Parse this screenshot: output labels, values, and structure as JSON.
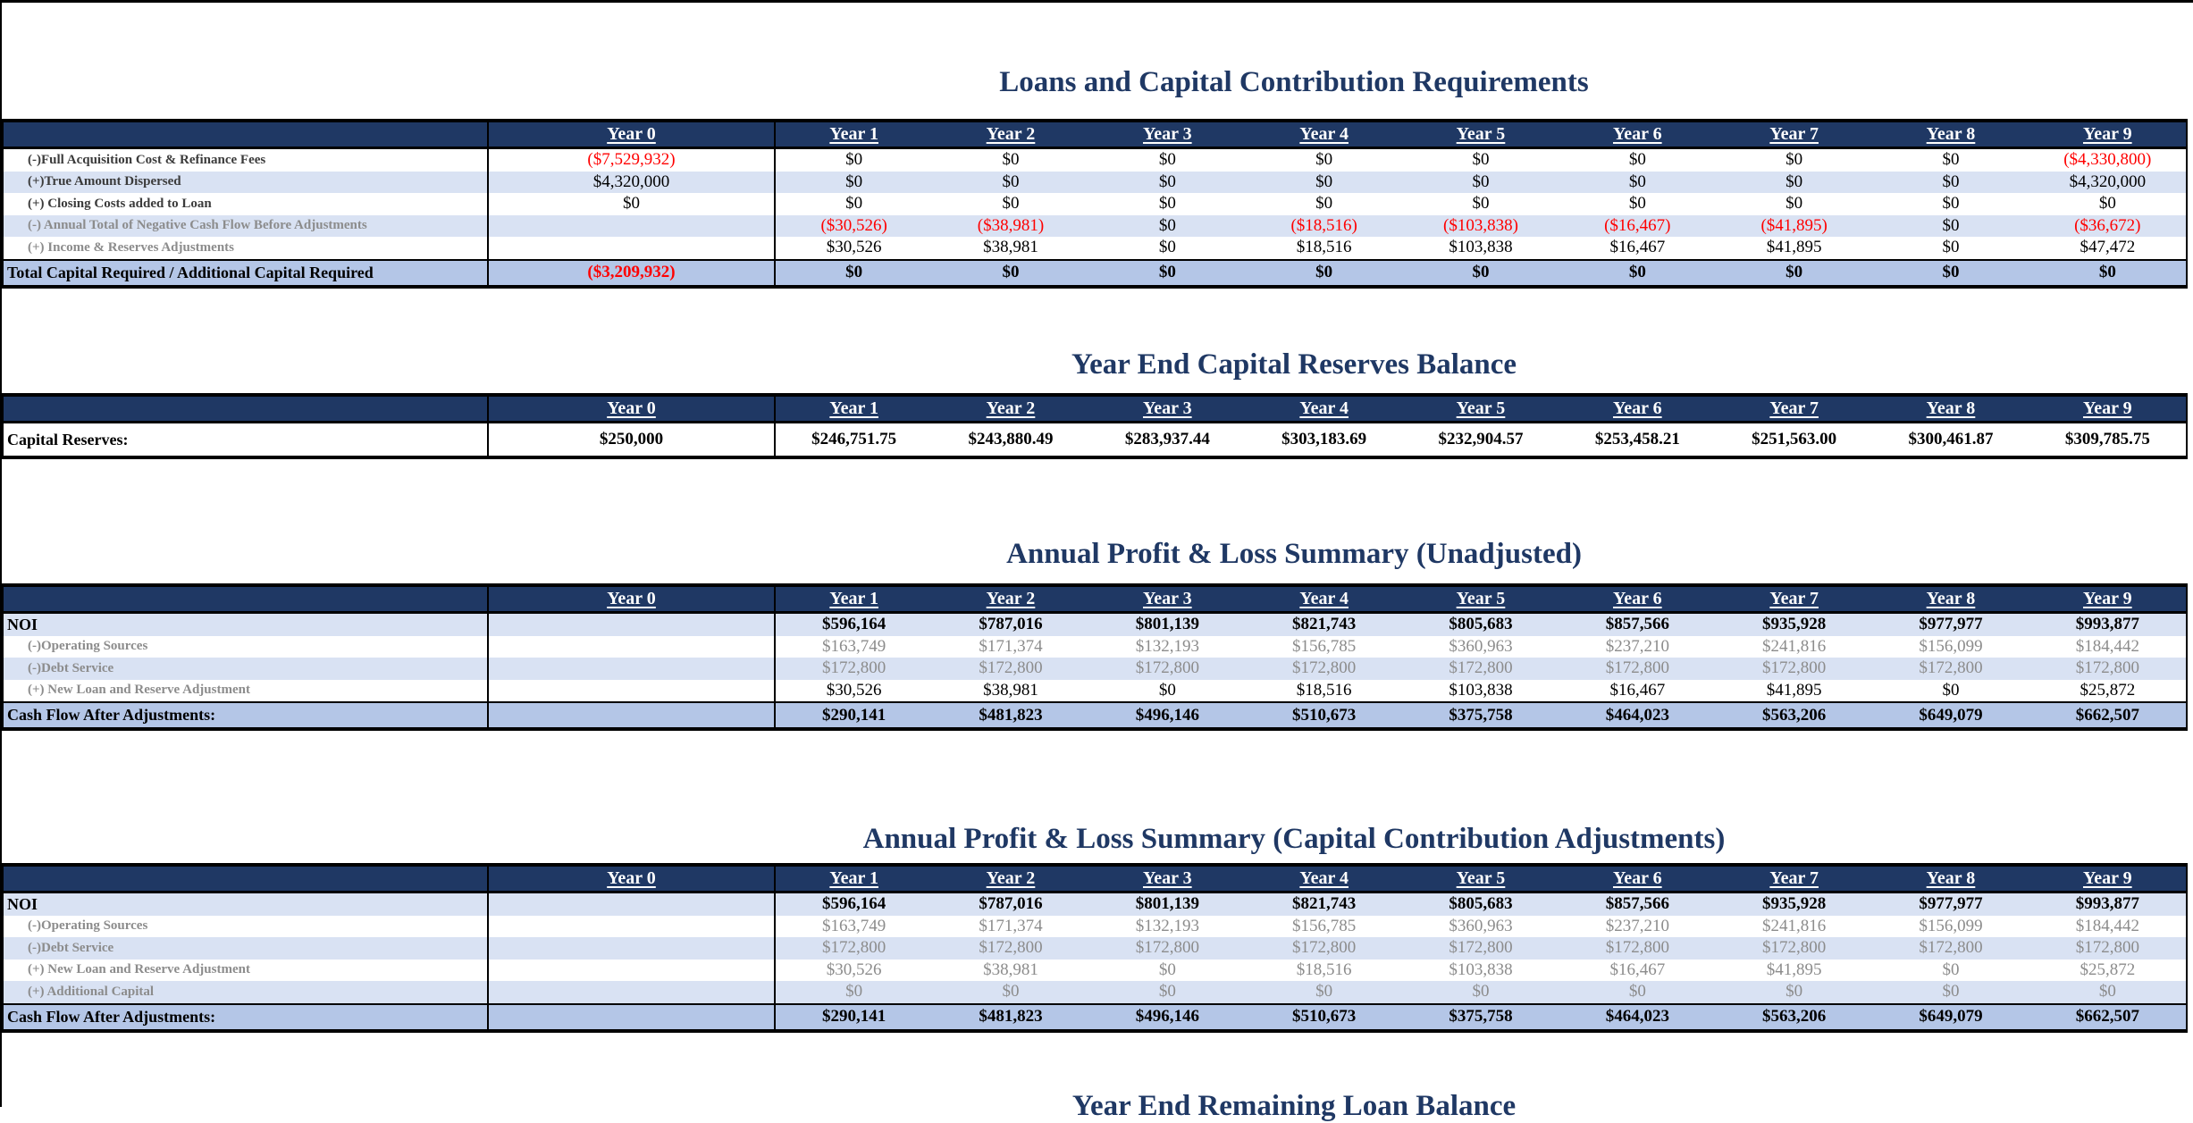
{
  "colors": {
    "header_bg": "#1F3864",
    "stripe": "#D9E2F3",
    "total_bg": "#B4C6E7",
    "negative": "#FF0000",
    "title_text": "#1F3864",
    "muted_text": "#8C8C8C"
  },
  "sections": [
    {
      "title": "Loans and Capital Contribution Requirements",
      "columns": [
        "Year 0",
        "Year 1",
        "Year 2",
        "Year 3",
        "Year 4",
        "Year 5",
        "Year 6",
        "Year 7",
        "Year 8",
        "Year 9"
      ],
      "rows": [
        {
          "label": "(-)Full Acquisition Cost & Refinance Fees",
          "indent": 1,
          "label_style": "dark",
          "shaded": false,
          "values": [
            "($7,529,932)",
            "$0",
            "$0",
            "$0",
            "$0",
            "$0",
            "$0",
            "$0",
            "$0",
            "($4,330,800)"
          ]
        },
        {
          "label": "(+)True Amount Dispersed",
          "indent": 1,
          "label_style": "dark",
          "shaded": true,
          "values": [
            "$4,320,000",
            "$0",
            "$0",
            "$0",
            "$0",
            "$0",
            "$0",
            "$0",
            "$0",
            "$4,320,000"
          ]
        },
        {
          "label": "(+) Closing Costs added to Loan",
          "indent": 1,
          "label_style": "dark",
          "shaded": false,
          "values": [
            "$0",
            "$0",
            "$0",
            "$0",
            "$0",
            "$0",
            "$0",
            "$0",
            "$0",
            "$0"
          ]
        },
        {
          "label": "(-) Annual Total of Negative Cash Flow Before Adjustments",
          "indent": 1,
          "label_style": "muted",
          "shaded": true,
          "values": [
            "",
            "($30,526)",
            "($38,981)",
            "$0",
            "($18,516)",
            "($103,838)",
            "($16,467)",
            "($41,895)",
            "$0",
            "($36,672)"
          ]
        },
        {
          "label": "(+) Income & Reserves Adjustments",
          "indent": 1,
          "label_style": "muted",
          "shaded": false,
          "values": [
            "",
            "$30,526",
            "$38,981",
            "$0",
            "$18,516",
            "$103,838",
            "$16,467",
            "$41,895",
            "$0",
            "$47,472"
          ]
        }
      ],
      "total_row": {
        "label": "Total Capital Required / Additional Capital Required",
        "indent": 0,
        "label_style": "bold",
        "values": [
          "($3,209,932)",
          "$0",
          "$0",
          "$0",
          "$0",
          "$0",
          "$0",
          "$0",
          "$0",
          "$0"
        ]
      }
    },
    {
      "title": "Year End Capital Reserves Balance",
      "columns": [
        "Year 0",
        "Year 1",
        "Year 2",
        "Year 3",
        "Year 4",
        "Year 5",
        "Year 6",
        "Year 7",
        "Year 8",
        "Year 9"
      ],
      "rows": [
        {
          "label": "Capital Reserves:",
          "indent": 0,
          "label_style": "bold",
          "bold_values": true,
          "tall": true,
          "shaded": false,
          "values": [
            "$250,000",
            "$246,751.75",
            "$243,880.49",
            "$283,937.44",
            "$303,183.69",
            "$232,904.57",
            "$253,458.21",
            "$251,563.00",
            "$300,461.87",
            "$309,785.75"
          ]
        }
      ],
      "total_row": null
    },
    {
      "title": "Annual Profit & Loss Summary (Unadjusted)",
      "columns": [
        "Year 0",
        "Year 1",
        "Year 2",
        "Year 3",
        "Year 4",
        "Year 5",
        "Year 6",
        "Year 7",
        "Year 8",
        "Year 9"
      ],
      "rows": [
        {
          "label": "NOI",
          "indent": 0,
          "label_style": "bold",
          "bold_values": true,
          "shaded": true,
          "values": [
            "",
            "$596,164",
            "$787,016",
            "$801,139",
            "$821,743",
            "$805,683",
            "$857,566",
            "$935,928",
            "$977,977",
            "$993,877"
          ]
        },
        {
          "label": "(-)Operating Sources",
          "indent": 1,
          "label_style": "muted",
          "muted_values": true,
          "shaded": false,
          "values": [
            "",
            "$163,749",
            "$171,374",
            "$132,193",
            "$156,785",
            "$360,963",
            "$237,210",
            "$241,816",
            "$156,099",
            "$184,442"
          ]
        },
        {
          "label": "(-)Debt Service",
          "indent": 1,
          "label_style": "muted",
          "muted_values": true,
          "shaded": true,
          "values": [
            "",
            "$172,800",
            "$172,800",
            "$172,800",
            "$172,800",
            "$172,800",
            "$172,800",
            "$172,800",
            "$172,800",
            "$172,800"
          ]
        },
        {
          "label": "(+) New Loan and Reserve Adjustment",
          "indent": 1,
          "label_style": "muted",
          "shaded": false,
          "values": [
            "",
            "$30,526",
            "$38,981",
            "$0",
            "$18,516",
            "$103,838",
            "$16,467",
            "$41,895",
            "$0",
            "$25,872"
          ]
        }
      ],
      "total_row": {
        "label": "Cash Flow After Adjustments:",
        "indent": 0,
        "label_style": "bold",
        "values": [
          "",
          "$290,141",
          "$481,823",
          "$496,146",
          "$510,673",
          "$375,758",
          "$464,023",
          "$563,206",
          "$649,079",
          "$662,507"
        ]
      }
    },
    {
      "title": "Annual Profit & Loss Summary (Capital Contribution Adjustments)",
      "columns": [
        "Year 0",
        "Year 1",
        "Year 2",
        "Year 3",
        "Year 4",
        "Year 5",
        "Year 6",
        "Year 7",
        "Year 8",
        "Year 9"
      ],
      "rows": [
        {
          "label": "NOI",
          "indent": 0,
          "label_style": "bold",
          "bold_values": true,
          "shaded": true,
          "values": [
            "",
            "$596,164",
            "$787,016",
            "$801,139",
            "$821,743",
            "$805,683",
            "$857,566",
            "$935,928",
            "$977,977",
            "$993,877"
          ]
        },
        {
          "label": "(-)Operating Sources",
          "indent": 1,
          "label_style": "muted",
          "muted_values": true,
          "shaded": false,
          "values": [
            "",
            "$163,749",
            "$171,374",
            "$132,193",
            "$156,785",
            "$360,963",
            "$237,210",
            "$241,816",
            "$156,099",
            "$184,442"
          ]
        },
        {
          "label": "(-)Debt Service",
          "indent": 1,
          "label_style": "muted",
          "muted_values": true,
          "shaded": true,
          "values": [
            "",
            "$172,800",
            "$172,800",
            "$172,800",
            "$172,800",
            "$172,800",
            "$172,800",
            "$172,800",
            "$172,800",
            "$172,800"
          ]
        },
        {
          "label": "(+) New Loan and Reserve Adjustment",
          "indent": 1,
          "label_style": "muted",
          "muted_values": true,
          "shaded": false,
          "values": [
            "",
            "$30,526",
            "$38,981",
            "$0",
            "$18,516",
            "$103,838",
            "$16,467",
            "$41,895",
            "$0",
            "$25,872"
          ]
        },
        {
          "label": "(+) Additional Capital",
          "indent": 1,
          "label_style": "muted",
          "muted_values": true,
          "shaded": true,
          "values": [
            "",
            "$0",
            "$0",
            "$0",
            "$0",
            "$0",
            "$0",
            "$0",
            "$0",
            "$0"
          ]
        }
      ],
      "total_row": {
        "label": "Cash Flow After Adjustments:",
        "indent": 0,
        "label_style": "bold",
        "values": [
          "",
          "$290,141",
          "$481,823",
          "$496,146",
          "$510,673",
          "$375,758",
          "$464,023",
          "$563,206",
          "$649,079",
          "$662,507"
        ]
      }
    }
  ],
  "partial_bottom_title": "Year End Remaining Loan Balance"
}
